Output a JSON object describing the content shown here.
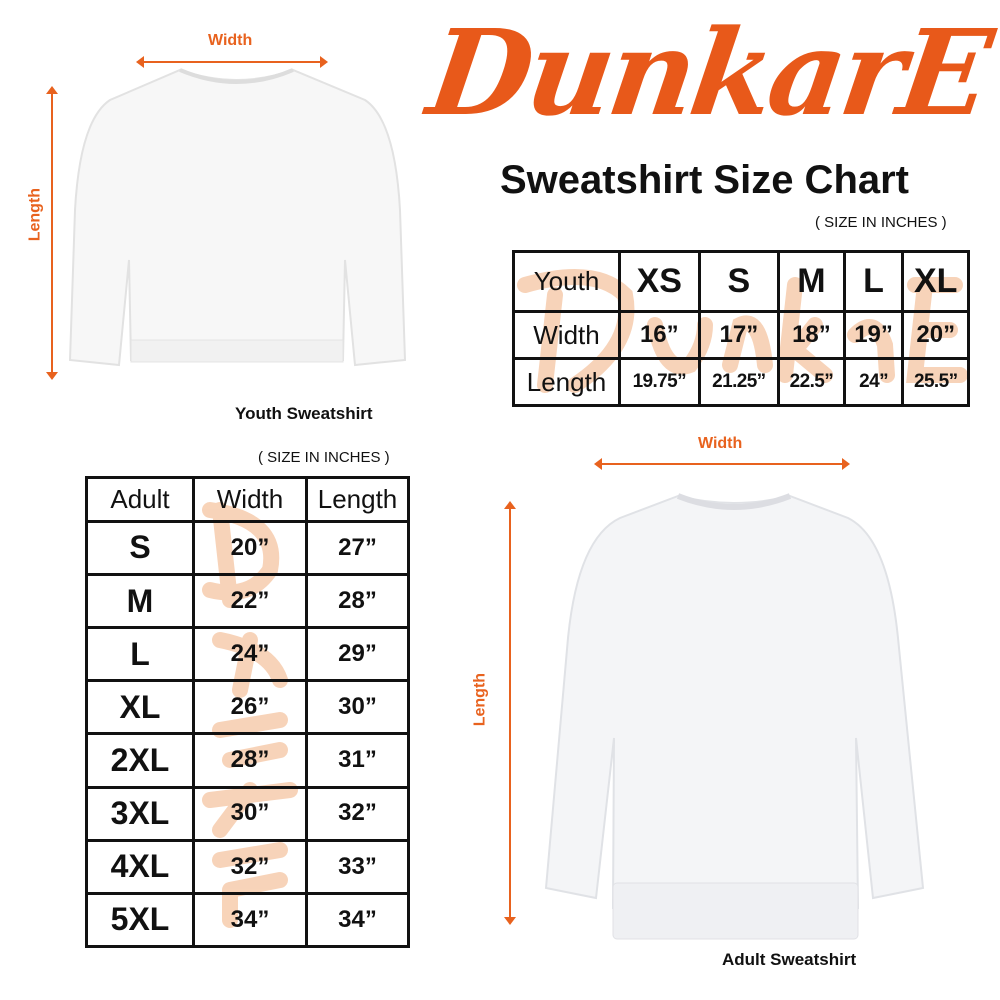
{
  "brand": {
    "logo_text": "DunkarE",
    "accent": "#e8591a"
  },
  "title": "Sweatshirt Size Chart",
  "youth": {
    "note": "( SIZE IN INCHES )",
    "width_label": "Width",
    "length_label": "Length",
    "caption": "Youth Sweatshirt",
    "header": [
      "Youth",
      "XS",
      "S",
      "M",
      "L",
      "XL"
    ],
    "rows": [
      [
        "Width",
        "16”",
        "17”",
        "18”",
        "19”",
        "20”"
      ],
      [
        "Length",
        "19.75”",
        "21.25”",
        "22.5”",
        "24”",
        "25.5”"
      ]
    ]
  },
  "adult": {
    "note": "( SIZE IN INCHES )",
    "width_label": "Width",
    "length_label": "Length",
    "caption": "Adult Sweatshirt",
    "header": [
      "Adult",
      "Width",
      "Length"
    ],
    "rows": [
      [
        "S",
        "20”",
        "27”"
      ],
      [
        "M",
        "22”",
        "28”"
      ],
      [
        "L",
        "24”",
        "29”"
      ],
      [
        "XL",
        "26”",
        "30”"
      ],
      [
        "2XL",
        "28”",
        "31”"
      ],
      [
        "3XL",
        "30”",
        "32”"
      ],
      [
        "4XL",
        "32”",
        "33”"
      ],
      [
        "5XL",
        "34”",
        "34”"
      ]
    ]
  }
}
